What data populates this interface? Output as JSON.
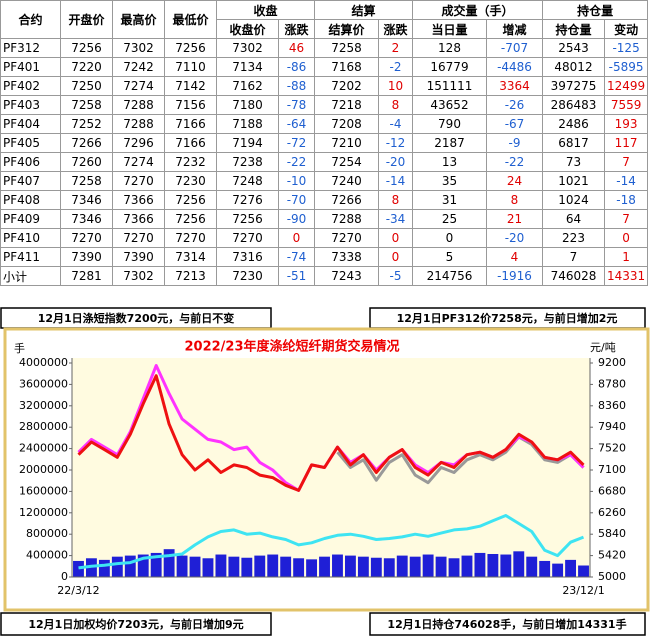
{
  "table": {
    "header_top": [
      "合约",
      "开盘价",
      "最高价",
      "最低价",
      "收盘",
      "结算",
      "成交量（手）",
      "持仓量"
    ],
    "header_sub": [
      "收盘价",
      "涨跌",
      "结算价",
      "涨跌",
      "当日量",
      "增减",
      "持仓量",
      "变动"
    ],
    "rows": [
      [
        "PF312",
        7256,
        7302,
        7256,
        7302,
        46,
        7258,
        2,
        128,
        -707,
        2543,
        -125
      ],
      [
        "PF401",
        7220,
        7242,
        7110,
        7134,
        -86,
        7168,
        -2,
        16779,
        -4486,
        48012,
        -5895
      ],
      [
        "PF402",
        7250,
        7274,
        7142,
        7162,
        -88,
        7202,
        10,
        151111,
        3364,
        397275,
        12499
      ],
      [
        "PF403",
        7258,
        7288,
        7156,
        7180,
        -78,
        7218,
        8,
        43652,
        -26,
        286483,
        7559
      ],
      [
        "PF404",
        7252,
        7288,
        7166,
        7188,
        -64,
        7208,
        -4,
        790,
        -67,
        2486,
        193
      ],
      [
        "PF405",
        7266,
        7296,
        7166,
        7194,
        -72,
        7210,
        -12,
        2187,
        -9,
        6817,
        117
      ],
      [
        "PF406",
        7260,
        7274,
        7232,
        7238,
        -22,
        7254,
        -20,
        13,
        -22,
        73,
        7
      ],
      [
        "PF407",
        7258,
        7270,
        7230,
        7248,
        -10,
        7240,
        -14,
        35,
        24,
        1021,
        -14
      ],
      [
        "PF408",
        7346,
        7366,
        7256,
        7276,
        -70,
        7266,
        8,
        31,
        8,
        1024,
        -18
      ],
      [
        "PF409",
        7346,
        7366,
        7256,
        7256,
        -90,
        7288,
        -34,
        25,
        21,
        64,
        7
      ],
      [
        "PF410",
        7270,
        7270,
        7270,
        7270,
        0,
        7270,
        0,
        0,
        -20,
        223,
        0
      ],
      [
        "PF411",
        7390,
        7390,
        7314,
        7316,
        -74,
        7338,
        0,
        5,
        4,
        7,
        1
      ],
      [
        "小计",
        7281,
        7302,
        7213,
        7230,
        -51,
        7243,
        -5,
        214756,
        -1916,
        746028,
        14331
      ]
    ]
  },
  "notes_top": [
    "12月1日涤短指数7200元，与前日不变",
    "12月1日PF312价7258元，与前日增加2元"
  ],
  "notes_bottom": [
    "12月1日加权均价7203元，与前日增加9元",
    "12月1日持仓746028手，与前日增加14331手"
  ],
  "chart_data": {
    "type": "line",
    "title": "2022/23年度涤纶短纤期货交易情况",
    "y_label": "手",
    "y2_label": "元/吨",
    "categories": [
      "22/3/12",
      null,
      null,
      null,
      null,
      null,
      null,
      null,
      null,
      null,
      null,
      null,
      null,
      null,
      null,
      null,
      null,
      null,
      null,
      null,
      null,
      null,
      null,
      null,
      null,
      null,
      null,
      null,
      null,
      null,
      null,
      null,
      null,
      null,
      null,
      null,
      null,
      null,
      null,
      "23/12/1"
    ],
    "ylim": [
      0,
      4000000
    ],
    "yticks": [
      0,
      400000,
      800000,
      1200000,
      1600000,
      2000000,
      2400000,
      2800000,
      3200000,
      3600000,
      4000000
    ],
    "y2lim": [
      5000,
      9200
    ],
    "y2ticks": [
      5000,
      5420,
      5840,
      6260,
      6680,
      7100,
      7520,
      7940,
      8360,
      8780,
      9200
    ],
    "background": "#fffbe0",
    "series": [
      {
        "type": "bar",
        "color": "#1f1fd6",
        "values": [
          300000,
          350000,
          320000,
          380000,
          400000,
          420000,
          450000,
          520000,
          400000,
          380000,
          350000,
          420000,
          380000,
          360000,
          400000,
          420000,
          380000,
          350000,
          330000,
          380000,
          420000,
          400000,
          380000,
          360000,
          350000,
          400000,
          380000,
          420000,
          380000,
          350000,
          400000,
          450000,
          430000,
          420000,
          480000,
          380000,
          300000,
          250000,
          320000,
          214756
        ]
      },
      {
        "type": "line",
        "color": "#3ee4f2",
        "values": [
          170000,
          200000,
          220000,
          250000,
          270000,
          350000,
          380000,
          400000,
          430000,
          600000,
          750000,
          850000,
          880000,
          800000,
          820000,
          750000,
          700000,
          600000,
          640000,
          720000,
          780000,
          800000,
          760000,
          700000,
          720000,
          750000,
          800000,
          760000,
          820000,
          880000,
          900000,
          950000,
          1050000,
          1150000,
          1000000,
          850000,
          500000,
          400000,
          650000,
          746028
        ]
      },
      {
        "type": "line",
        "axis": "y2",
        "color": "#999999",
        "values": [
          null,
          null,
          null,
          null,
          null,
          null,
          null,
          null,
          null,
          null,
          null,
          null,
          null,
          null,
          null,
          null,
          null,
          null,
          null,
          null,
          7450,
          7150,
          7300,
          6900,
          7250,
          7400,
          7000,
          6850,
          7150,
          7050,
          7300,
          7400,
          7300,
          7450,
          7750,
          7600,
          7300,
          7250,
          7400,
          7150
        ]
      },
      {
        "type": "line",
        "axis": "y2",
        "color": "#ff33ff",
        "values": [
          7450,
          7700,
          7550,
          7400,
          7850,
          8500,
          9150,
          8600,
          8100,
          7900,
          7700,
          7650,
          7500,
          7550,
          7250,
          7100,
          6850,
          6700,
          7200,
          7150,
          7550,
          7250,
          7400,
          7100,
          7350,
          7500,
          7200,
          7050,
          7250,
          7200,
          7400,
          7450,
          7350,
          7500,
          7750,
          7650,
          7350,
          7300,
          7400,
          7150
        ]
      },
      {
        "type": "line",
        "axis": "y2",
        "color": "#ee1111",
        "values": [
          7400,
          7650,
          7500,
          7350,
          7800,
          8400,
          8950,
          8000,
          7400,
          7100,
          7300,
          7050,
          7200,
          7150,
          7000,
          6950,
          6800,
          6700,
          7200,
          7150,
          7550,
          7200,
          7400,
          7050,
          7350,
          7500,
          7150,
          7000,
          7250,
          7150,
          7400,
          7450,
          7350,
          7500,
          7800,
          7650,
          7350,
          7300,
          7450,
          7200
        ]
      }
    ]
  }
}
